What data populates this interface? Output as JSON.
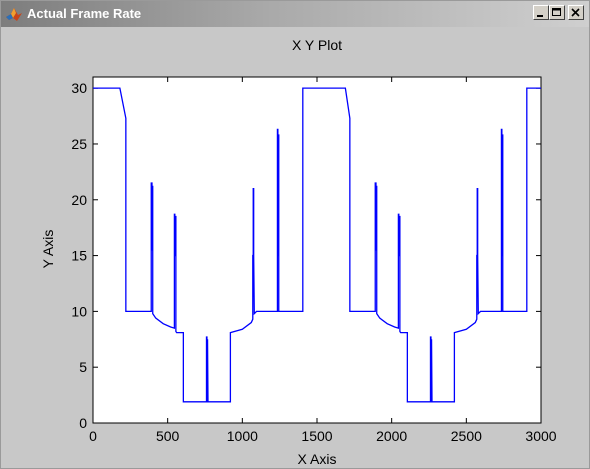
{
  "window": {
    "title": "Actual Frame Rate",
    "icon": "matlab-figure-icon",
    "buttons": [
      "minimize-icon",
      "maximize-icon",
      "close-icon"
    ]
  },
  "colors": {
    "window_bg": "#c8c8c8",
    "plot_bg": "#ffffff",
    "line": "#0000ff"
  },
  "chart_data": {
    "type": "line",
    "title": "X Y Plot",
    "xlabel": "X Axis",
    "ylabel": "Y Axis",
    "xlim": [
      0,
      3000
    ],
    "ylim": [
      0,
      31
    ],
    "xticks": [
      0,
      500,
      1000,
      1500,
      2000,
      2500,
      3000
    ],
    "yticks": [
      0,
      5,
      10,
      15,
      20,
      25,
      30
    ],
    "grid": false,
    "series": [
      {
        "x": [
          0,
          180,
          220,
          220,
          365,
          375,
          385,
          390,
          390,
          395,
          395,
          397,
          397,
          400,
          400,
          405,
          420,
          470,
          520,
          545,
          545,
          548,
          548,
          551,
          551,
          555,
          555,
          560,
          605,
          605,
          760,
          760,
          763,
          763,
          767,
          767,
          770,
          920,
          920,
          1000,
          1060,
          1070,
          1070,
          1073,
          1073,
          1076,
          1076,
          1080,
          1095,
          1095,
          1235,
          1235,
          1238,
          1238,
          1241,
          1241,
          1244,
          1244,
          1247,
          1247,
          1250,
          1405,
          1405,
          1690,
          1720,
          1720,
          1865,
          1875,
          1885,
          1890,
          1890,
          1895,
          1895,
          1897,
          1897,
          1900,
          1900,
          1905,
          1920,
          1970,
          2020,
          2045,
          2045,
          2048,
          2048,
          2051,
          2051,
          2055,
          2055,
          2060,
          2105,
          2105,
          2260,
          2260,
          2263,
          2263,
          2267,
          2267,
          2270,
          2420,
          2420,
          2500,
          2560,
          2570,
          2570,
          2573,
          2573,
          2576,
          2576,
          2580,
          2595,
          2595,
          2735,
          2735,
          2738,
          2738,
          2741,
          2741,
          2744,
          2744,
          2747,
          2747,
          2750,
          2905,
          2905,
          3000
        ],
        "values": [
          30,
          30,
          27.3,
          10,
          10,
          10,
          10,
          10,
          21.5,
          21.5,
          15.5,
          15.5,
          21.2,
          21.2,
          9.8,
          9.7,
          9.4,
          8.9,
          8.6,
          8.5,
          18.7,
          18.7,
          15,
          15,
          18.5,
          18.5,
          8.2,
          8.1,
          8.1,
          1.9,
          1.9,
          7.7,
          7.7,
          1.9,
          1.9,
          7.5,
          1.9,
          1.9,
          8.1,
          8.4,
          9,
          9.3,
          15,
          15,
          21,
          21,
          15,
          9.8,
          10,
          10,
          10,
          26.3,
          26.3,
          15,
          15,
          25.8,
          25.8,
          10,
          10,
          10,
          10,
          10,
          30,
          30,
          27.3,
          10,
          10,
          10,
          10,
          10,
          21.5,
          21.5,
          15.5,
          15.5,
          21.2,
          21.2,
          9.8,
          9.7,
          9.4,
          8.9,
          8.6,
          8.5,
          18.7,
          18.7,
          15,
          15,
          18.5,
          18.5,
          8.2,
          8.1,
          8.1,
          1.9,
          1.9,
          7.7,
          7.7,
          1.9,
          1.9,
          7.5,
          1.9,
          1.9,
          8.1,
          8.4,
          9,
          9.3,
          15,
          15,
          21,
          21,
          15,
          9.8,
          10,
          10,
          10,
          26.3,
          26.3,
          15,
          15,
          25.8,
          25.8,
          10,
          10,
          10,
          10,
          10,
          30,
          30
        ]
      }
    ]
  }
}
